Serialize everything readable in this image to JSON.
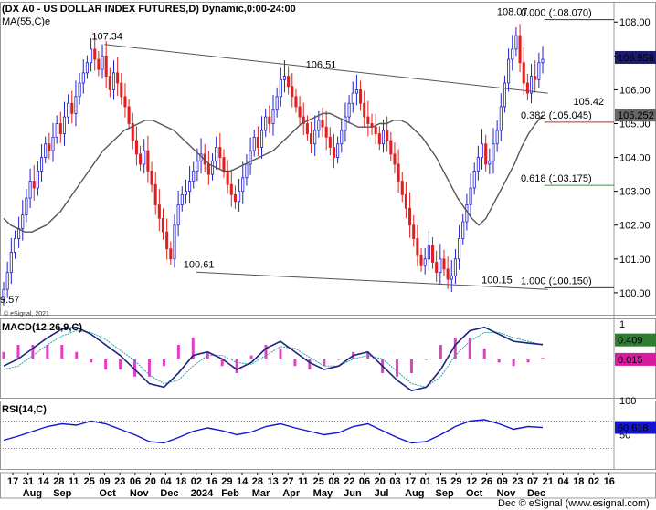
{
  "header": {
    "title": "(DX A0 - US DOLLAR INDEX FUTURES,D) Dynamic,0:00-24:00",
    "ma_label": "MA(55,C)e",
    "watermark": "© eSignal, 2021",
    "footer": "Dec © eSignal (www.esignal.com)"
  },
  "colors": {
    "up": "#1f1fd0",
    "down": "#e02020",
    "ma": "#555555",
    "trend": "#555555",
    "fib_100": "#333333",
    "fib_382": "#c62828",
    "fib_618": "#2e9e2e",
    "macd": "#1a237e",
    "signal": "#26a69a",
    "hist": "#e040c8",
    "rsi": "#1515d0"
  },
  "chart_data": [
    {
      "type": "candlestick",
      "panel": "price",
      "ylim": [
        99.35,
        108.6
      ],
      "y_ticks": [
        100.0,
        101.0,
        102.0,
        103.0,
        104.0,
        105.0,
        106.0,
        107.0,
        108.0
      ],
      "y_tick_labels": [
        "100.00",
        "101.00",
        "102.00",
        "103.00",
        "104.00",
        "105.00",
        "106.00",
        "107.00",
        "108.00"
      ],
      "current_price": "106.956",
      "ma_value": "105.252",
      "x_tick_labels": [
        "17",
        "31",
        "14",
        "28",
        "11",
        "25",
        "09",
        "23",
        "06",
        "20",
        "04",
        "18",
        "02",
        "16",
        "29",
        "14",
        "28",
        "13",
        "27",
        "11",
        "25",
        "08",
        "22",
        "06",
        "20",
        "03",
        "17",
        "01",
        "15",
        "29",
        "12",
        "26",
        "09",
        "23",
        "07",
        "21",
        "04",
        "18",
        "02",
        "16"
      ],
      "month_labels": [
        {
          "label": "Aug",
          "at": 1
        },
        {
          "label": "Sep",
          "at": 3
        },
        {
          "label": "Oct",
          "at": 6
        },
        {
          "label": "Nov",
          "at": 8
        },
        {
          "label": "Dec",
          "at": 10
        },
        {
          "label": "2024",
          "at": 12
        },
        {
          "label": "Feb",
          "at": 14
        },
        {
          "label": "Mar",
          "at": 16
        },
        {
          "label": "Apr",
          "at": 18
        },
        {
          "label": "May",
          "at": 20
        },
        {
          "label": "Jun",
          "at": 22
        },
        {
          "label": "Jul",
          "at": 24
        },
        {
          "label": "Aug",
          "at": 26
        },
        {
          "label": "Sep",
          "at": 28
        },
        {
          "label": "Oct",
          "at": 30
        },
        {
          "label": "Nov",
          "at": 32
        },
        {
          "label": "Dec",
          "at": 34
        }
      ],
      "closes": [
        100.1,
        100.6,
        101.2,
        101.6,
        101.9,
        102.3,
        102.8,
        103.3,
        103.1,
        103.6,
        104.0,
        104.4,
        104.2,
        104.6,
        105.0,
        104.7,
        105.2,
        105.6,
        105.3,
        105.8,
        106.2,
        106.5,
        106.8,
        107.2,
        106.9,
        106.6,
        107.0,
        106.4,
        106.0,
        106.5,
        106.2,
        105.8,
        105.5,
        105.0,
        104.5,
        104.1,
        103.8,
        104.2,
        103.6,
        103.2,
        102.6,
        102.2,
        101.8,
        101.3,
        101.0,
        102.0,
        102.6,
        102.9,
        103.0,
        103.3,
        103.6,
        103.9,
        104.1,
        103.8,
        103.5,
        103.9,
        104.3,
        104.0,
        103.6,
        103.2,
        102.9,
        102.7,
        103.0,
        103.4,
        103.8,
        104.2,
        104.6,
        104.3,
        104.8,
        105.2,
        105.0,
        105.4,
        105.8,
        106.3,
        106.4,
        106.1,
        105.8,
        105.5,
        105.2,
        105.0,
        104.7,
        104.4,
        104.8,
        105.1,
        104.9,
        104.6,
        104.3,
        104.0,
        104.4,
        104.8,
        105.2,
        105.6,
        105.9,
        106.0,
        105.6,
        105.2,
        105.0,
        104.9,
        104.7,
        104.4,
        104.8,
        104.5,
        104.1,
        103.8,
        103.3,
        102.9,
        102.5,
        102.0,
        101.6,
        101.1,
        100.8,
        101.0,
        101.4,
        100.9,
        100.6,
        101.0,
        100.7,
        100.4,
        100.5,
        101.0,
        101.6,
        102.1,
        102.6,
        103.1,
        103.6,
        104.0,
        104.4,
        103.8,
        103.9,
        104.4,
        104.8,
        105.5,
        106.2,
        106.9,
        107.2,
        107.6,
        106.8,
        106.2,
        105.9,
        106.4,
        106.3,
        106.8,
        106.9
      ],
      "ma": [
        102.2,
        102.0,
        101.9,
        101.8,
        101.8,
        101.9,
        102.0,
        102.2,
        102.4,
        102.7,
        103.0,
        103.3,
        103.6,
        103.9,
        104.2,
        104.4,
        104.6,
        104.8,
        104.9,
        105.0,
        105.1,
        105.1,
        105.0,
        104.9,
        104.8,
        104.6,
        104.4,
        104.2,
        104.0,
        103.8,
        103.7,
        103.6,
        103.6,
        103.7,
        103.8,
        103.9,
        104.0,
        104.1,
        104.2,
        104.4,
        104.6,
        104.8,
        105.0,
        105.1,
        105.2,
        105.3,
        105.3,
        105.2,
        105.1,
        105.0,
        104.9,
        104.9,
        104.9,
        105.0,
        105.0,
        105.1,
        105.1,
        105.0,
        104.8,
        104.6,
        104.3,
        104.0,
        103.6,
        103.2,
        102.8,
        102.5,
        102.2,
        102.0,
        102.2,
        102.6,
        103.0,
        103.4,
        103.8,
        104.3,
        104.7,
        105.0,
        105.25
      ],
      "trendlines": [
        {
          "from": [
            6,
            107.34
          ],
          "to": [
            35,
            105.9
          ]
        },
        {
          "from": [
            12,
            100.61
          ],
          "to": [
            35,
            100.1
          ]
        }
      ],
      "fib_levels": [
        {
          "label": "0.000 (108.070)",
          "value": 108.07,
          "from_x": 35
        },
        {
          "label": "0.382 (105.045)",
          "value": 105.045,
          "from_x": 35
        },
        {
          "label": "0.618 (103.175)",
          "value": 103.175,
          "from_x": 35
        },
        {
          "label": "1.000 (100.150)",
          "value": 100.15,
          "from_x": 35
        }
      ],
      "annotations": [
        {
          "text": "107.34",
          "x": 6,
          "y": 107.34
        },
        {
          "text": "106.51",
          "x": 20,
          "y": 106.51
        },
        {
          "text": "100.61",
          "x": 12,
          "y": 100.61
        },
        {
          "text": "100.15",
          "x": 31.5,
          "y": 100.15
        },
        {
          "text": "108.07",
          "x": 32.5,
          "y": 108.07
        },
        {
          "text": "105.42",
          "x": 37.5,
          "y": 105.42
        },
        {
          "text": "9.57",
          "x": 0,
          "y": 99.57
        }
      ]
    },
    {
      "type": "line",
      "panel": "macd",
      "title": "MACD(12,26,9,C)",
      "ylim": [
        -1.1,
        1.15
      ],
      "y_ticks": [
        1,
        0
      ],
      "y_tick_labels": [
        "1",
        "0"
      ],
      "value_labels": [
        "0.409",
        "0.015"
      ],
      "macd": [
        -0.2,
        0.0,
        0.3,
        0.6,
        0.85,
        0.9,
        0.7,
        0.4,
        0.1,
        -0.3,
        -0.7,
        -0.8,
        -0.4,
        0.1,
        0.2,
        0.0,
        -0.3,
        -0.1,
        0.3,
        0.5,
        0.2,
        -0.1,
        -0.3,
        -0.2,
        0.1,
        0.2,
        -0.2,
        -0.6,
        -0.9,
        -0.8,
        -0.3,
        0.4,
        0.8,
        0.9,
        0.7,
        0.5,
        0.45,
        0.409
      ],
      "signal": [
        -0.3,
        -0.2,
        0.1,
        0.4,
        0.65,
        0.8,
        0.75,
        0.55,
        0.25,
        -0.05,
        -0.45,
        -0.7,
        -0.6,
        -0.2,
        0.1,
        0.1,
        -0.1,
        -0.15,
        0.1,
        0.35,
        0.3,
        0.05,
        -0.2,
        -0.2,
        0.0,
        0.1,
        0.0,
        -0.35,
        -0.7,
        -0.8,
        -0.5,
        0.1,
        0.5,
        0.75,
        0.75,
        0.6,
        0.5,
        0.394
      ]
    },
    {
      "type": "line",
      "panel": "rsi",
      "title": "RSI(14,C)",
      "ylim": [
        0,
        100
      ],
      "y_ticks": [
        100,
        50
      ],
      "y_tick_labels": [
        "100",
        "50"
      ],
      "bands": [
        70,
        30
      ],
      "value_label": "60.618",
      "values": [
        42,
        48,
        55,
        62,
        66,
        64,
        70,
        66,
        58,
        50,
        40,
        38,
        46,
        55,
        60,
        56,
        50,
        54,
        62,
        66,
        60,
        55,
        50,
        53,
        62,
        66,
        56,
        46,
        38,
        40,
        50,
        62,
        70,
        72,
        66,
        58,
        62,
        60.618
      ]
    }
  ]
}
